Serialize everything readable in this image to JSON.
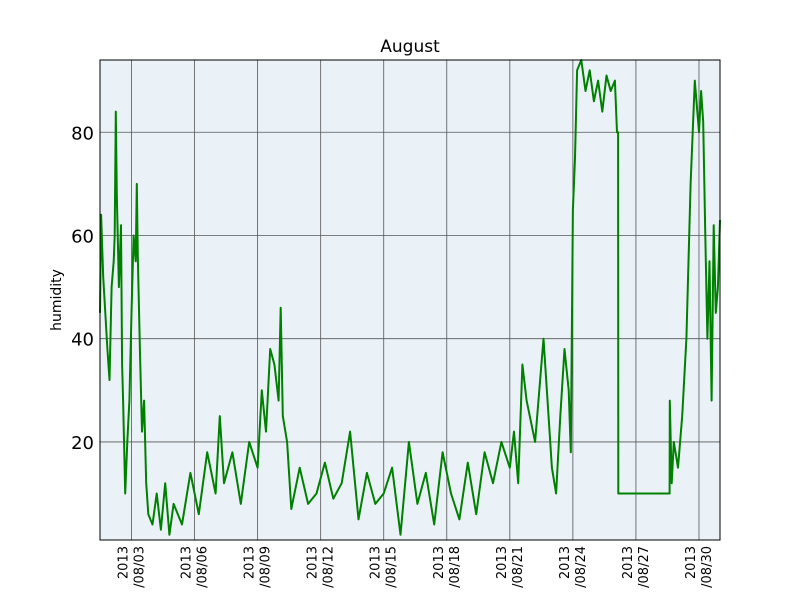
{
  "chart_data": {
    "type": "line",
    "title": "August",
    "xlabel": "",
    "ylabel": "humidity",
    "grid": true,
    "background_color": "#eaf2f8",
    "line_color": "#008000",
    "xlim": [
      "2013-08-01 12:00",
      "2013-08-31 00:00"
    ],
    "ylim": [
      1,
      94
    ],
    "y_ticks": [
      20,
      40,
      60,
      80
    ],
    "x_ticks": [
      {
        "date": "2013-08-03",
        "label_top": "2013",
        "label_bottom": "/08/03"
      },
      {
        "date": "2013-08-06",
        "label_top": "2013",
        "label_bottom": "/08/06"
      },
      {
        "date": "2013-08-09",
        "label_top": "2013",
        "label_bottom": "/08/09"
      },
      {
        "date": "2013-08-12",
        "label_top": "2013",
        "label_bottom": "/08/12"
      },
      {
        "date": "2013-08-15",
        "label_top": "2013",
        "label_bottom": "/08/15"
      },
      {
        "date": "2013-08-18",
        "label_top": "2013",
        "label_bottom": "/08/18"
      },
      {
        "date": "2013-08-21",
        "label_top": "2013",
        "label_bottom": "/08/21"
      },
      {
        "date": "2013-08-24",
        "label_top": "2013",
        "label_bottom": "/08/24"
      },
      {
        "date": "2013-08-27",
        "label_top": "2013",
        "label_bottom": "/08/27"
      },
      {
        "date": "2013-08-30",
        "label_top": "2013",
        "label_bottom": "/08/30"
      }
    ],
    "series": [
      {
        "x": [
          "2013-08-01 12:00",
          "2013-08-01 13:12",
          "2013-08-01 15:36",
          "2013-08-01 18:00",
          "2013-08-01 20:24",
          "2013-08-01 22:48",
          "2013-08-02 01:12",
          "2013-08-02 03:36",
          "2013-08-02 04:48",
          "2013-08-02 06:00",
          "2013-08-02 07:12",
          "2013-08-02 09:36",
          "2013-08-02 12:00",
          "2013-08-02 13:12",
          "2013-08-02 14:24",
          "2013-08-02 16:48",
          "2013-08-02 19:12",
          "2013-08-02 21:36",
          "2013-08-03 00:00",
          "2013-08-03 02:24",
          "2013-08-03 04:48",
          "2013-08-03 06:00",
          "2013-08-03 07:12",
          "2013-08-03 09:36",
          "2013-08-03 12:00",
          "2013-08-03 14:24",
          "2013-08-03 16:48",
          "2013-08-03 19:12",
          "2013-08-04 00:00",
          "2013-08-04 04:48",
          "2013-08-04 09:36",
          "2013-08-04 14:24",
          "2013-08-04 19:12",
          "2013-08-05 00:00",
          "2013-08-05 09:36",
          "2013-08-05 19:12",
          "2013-08-06 04:48",
          "2013-08-06 14:24",
          "2013-08-07 00:00",
          "2013-08-07 04:48",
          "2013-08-07 09:36",
          "2013-08-07 19:12",
          "2013-08-08 04:48",
          "2013-08-08 14:24",
          "2013-08-09 00:00",
          "2013-08-09 04:48",
          "2013-08-09 09:36",
          "2013-08-09 14:24",
          "2013-08-09 19:12",
          "2013-08-10 00:00",
          "2013-08-10 02:24",
          "2013-08-10 04:48",
          "2013-08-10 09:36",
          "2013-08-10 14:24",
          "2013-08-11 00:00",
          "2013-08-11 09:36",
          "2013-08-11 19:12",
          "2013-08-12 04:48",
          "2013-08-12 14:24",
          "2013-08-13 00:00",
          "2013-08-13 09:36",
          "2013-08-13 19:12",
          "2013-08-14 04:48",
          "2013-08-14 14:24",
          "2013-08-15 00:00",
          "2013-08-15 09:36",
          "2013-08-15 19:12",
          "2013-08-16 04:48",
          "2013-08-16 14:24",
          "2013-08-17 00:00",
          "2013-08-17 09:36",
          "2013-08-17 19:12",
          "2013-08-18 04:48",
          "2013-08-18 14:24",
          "2013-08-19 00:00",
          "2013-08-19 09:36",
          "2013-08-19 19:12",
          "2013-08-20 04:48",
          "2013-08-20 14:24",
          "2013-08-21 00:00",
          "2013-08-21 04:48",
          "2013-08-21 09:36",
          "2013-08-21 14:24",
          "2013-08-21 19:12",
          "2013-08-22 04:48",
          "2013-08-22 14:24",
          "2013-08-23 00:00",
          "2013-08-23 04:48",
          "2013-08-23 09:36",
          "2013-08-23 14:24",
          "2013-08-23 19:12",
          "2013-08-23 21:36",
          "2013-08-24 00:00",
          "2013-08-24 02:24",
          "2013-08-24 04:48",
          "2013-08-24 09:36",
          "2013-08-24 14:24",
          "2013-08-24 19:12",
          "2013-08-25 00:00",
          "2013-08-25 04:48",
          "2013-08-25 09:36",
          "2013-08-25 14:24",
          "2013-08-25 19:12",
          "2013-08-26 00:00",
          "2013-08-26 02:24",
          "2013-08-26 03:36",
          "2013-08-26 03:50",
          "2013-08-28 14:24",
          "2013-08-28 14:38",
          "2013-08-28 16:48",
          "2013-08-28 19:12",
          "2013-08-29 00:00",
          "2013-08-29 04:48",
          "2013-08-29 09:36",
          "2013-08-29 14:24",
          "2013-08-29 19:12",
          "2013-08-30 00:00",
          "2013-08-30 02:24",
          "2013-08-30 04:48",
          "2013-08-30 07:12",
          "2013-08-30 09:36",
          "2013-08-30 12:00",
          "2013-08-30 14:24",
          "2013-08-30 16:48",
          "2013-08-30 19:12",
          "2013-08-30 21:36",
          "2013-08-31 00:00"
        ],
        "y": [
          45,
          64,
          52,
          45,
          38,
          32,
          50,
          55,
          60,
          84,
          68,
          50,
          62,
          35,
          28,
          10,
          20,
          28,
          45,
          60,
          55,
          70,
          56,
          38,
          22,
          28,
          12,
          6,
          4,
          10,
          3,
          12,
          2,
          8,
          4,
          14,
          6,
          18,
          10,
          25,
          12,
          18,
          8,
          20,
          15,
          30,
          22,
          38,
          35,
          28,
          46,
          25,
          20,
          7,
          15,
          8,
          10,
          16,
          9,
          12,
          22,
          5,
          14,
          8,
          10,
          15,
          2,
          20,
          8,
          14,
          4,
          18,
          10,
          5,
          16,
          6,
          18,
          12,
          20,
          15,
          22,
          12,
          35,
          28,
          20,
          40,
          15,
          10,
          25,
          38,
          30,
          18,
          65,
          75,
          92,
          94,
          88,
          92,
          86,
          90,
          84,
          91,
          88,
          90,
          80,
          80,
          10,
          10,
          28,
          12,
          20,
          15,
          25,
          40,
          70,
          90,
          80,
          88,
          82,
          60,
          40,
          55,
          28,
          62,
          45,
          50,
          63
        ]
      }
    ]
  }
}
